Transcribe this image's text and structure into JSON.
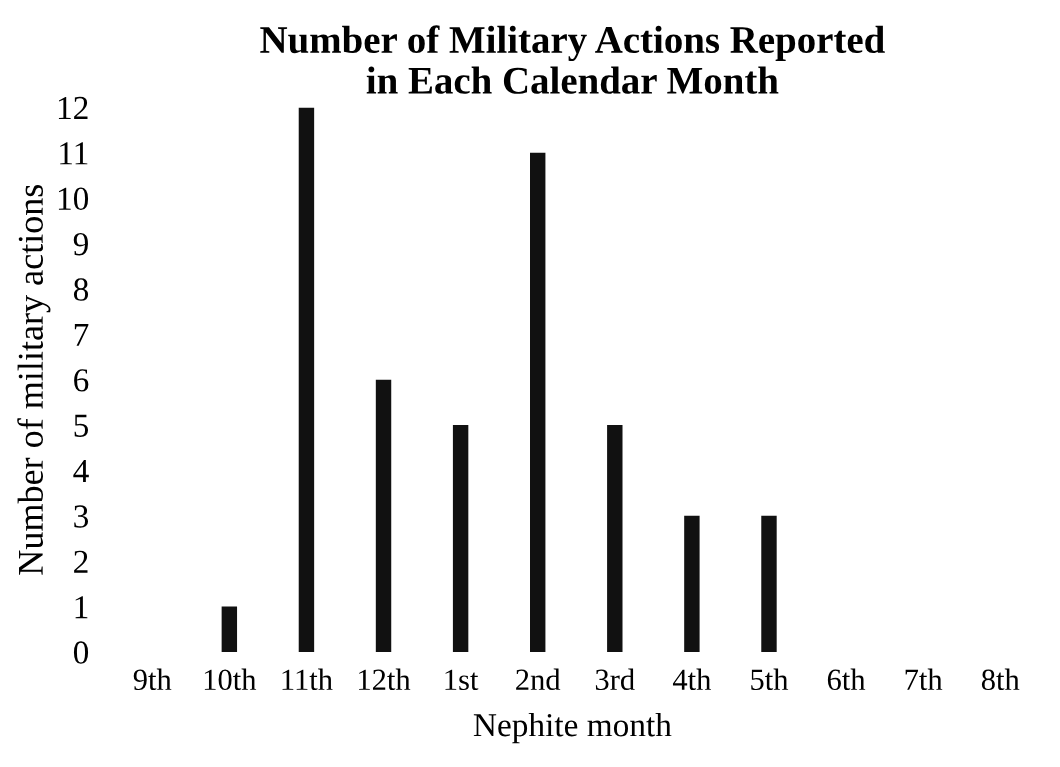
{
  "chart_data": {
    "type": "bar",
    "title": "Number of Military Actions Reported\nin Each Calendar Month",
    "xlabel": "Nephite month",
    "ylabel": "Number of military actions",
    "categories": [
      "9th",
      "10th",
      "11th",
      "12th",
      "1st",
      "2nd",
      "3rd",
      "4th",
      "5th",
      "6th",
      "7th",
      "8th"
    ],
    "values": [
      0,
      1,
      12,
      6,
      5,
      11,
      5,
      3,
      3,
      0,
      0,
      0
    ],
    "color": "#111111",
    "ylim": [
      0,
      12
    ],
    "yticks": [
      0,
      1,
      2,
      3,
      4,
      5,
      6,
      7,
      8,
      9,
      10,
      11,
      12
    ],
    "grid": false
  }
}
